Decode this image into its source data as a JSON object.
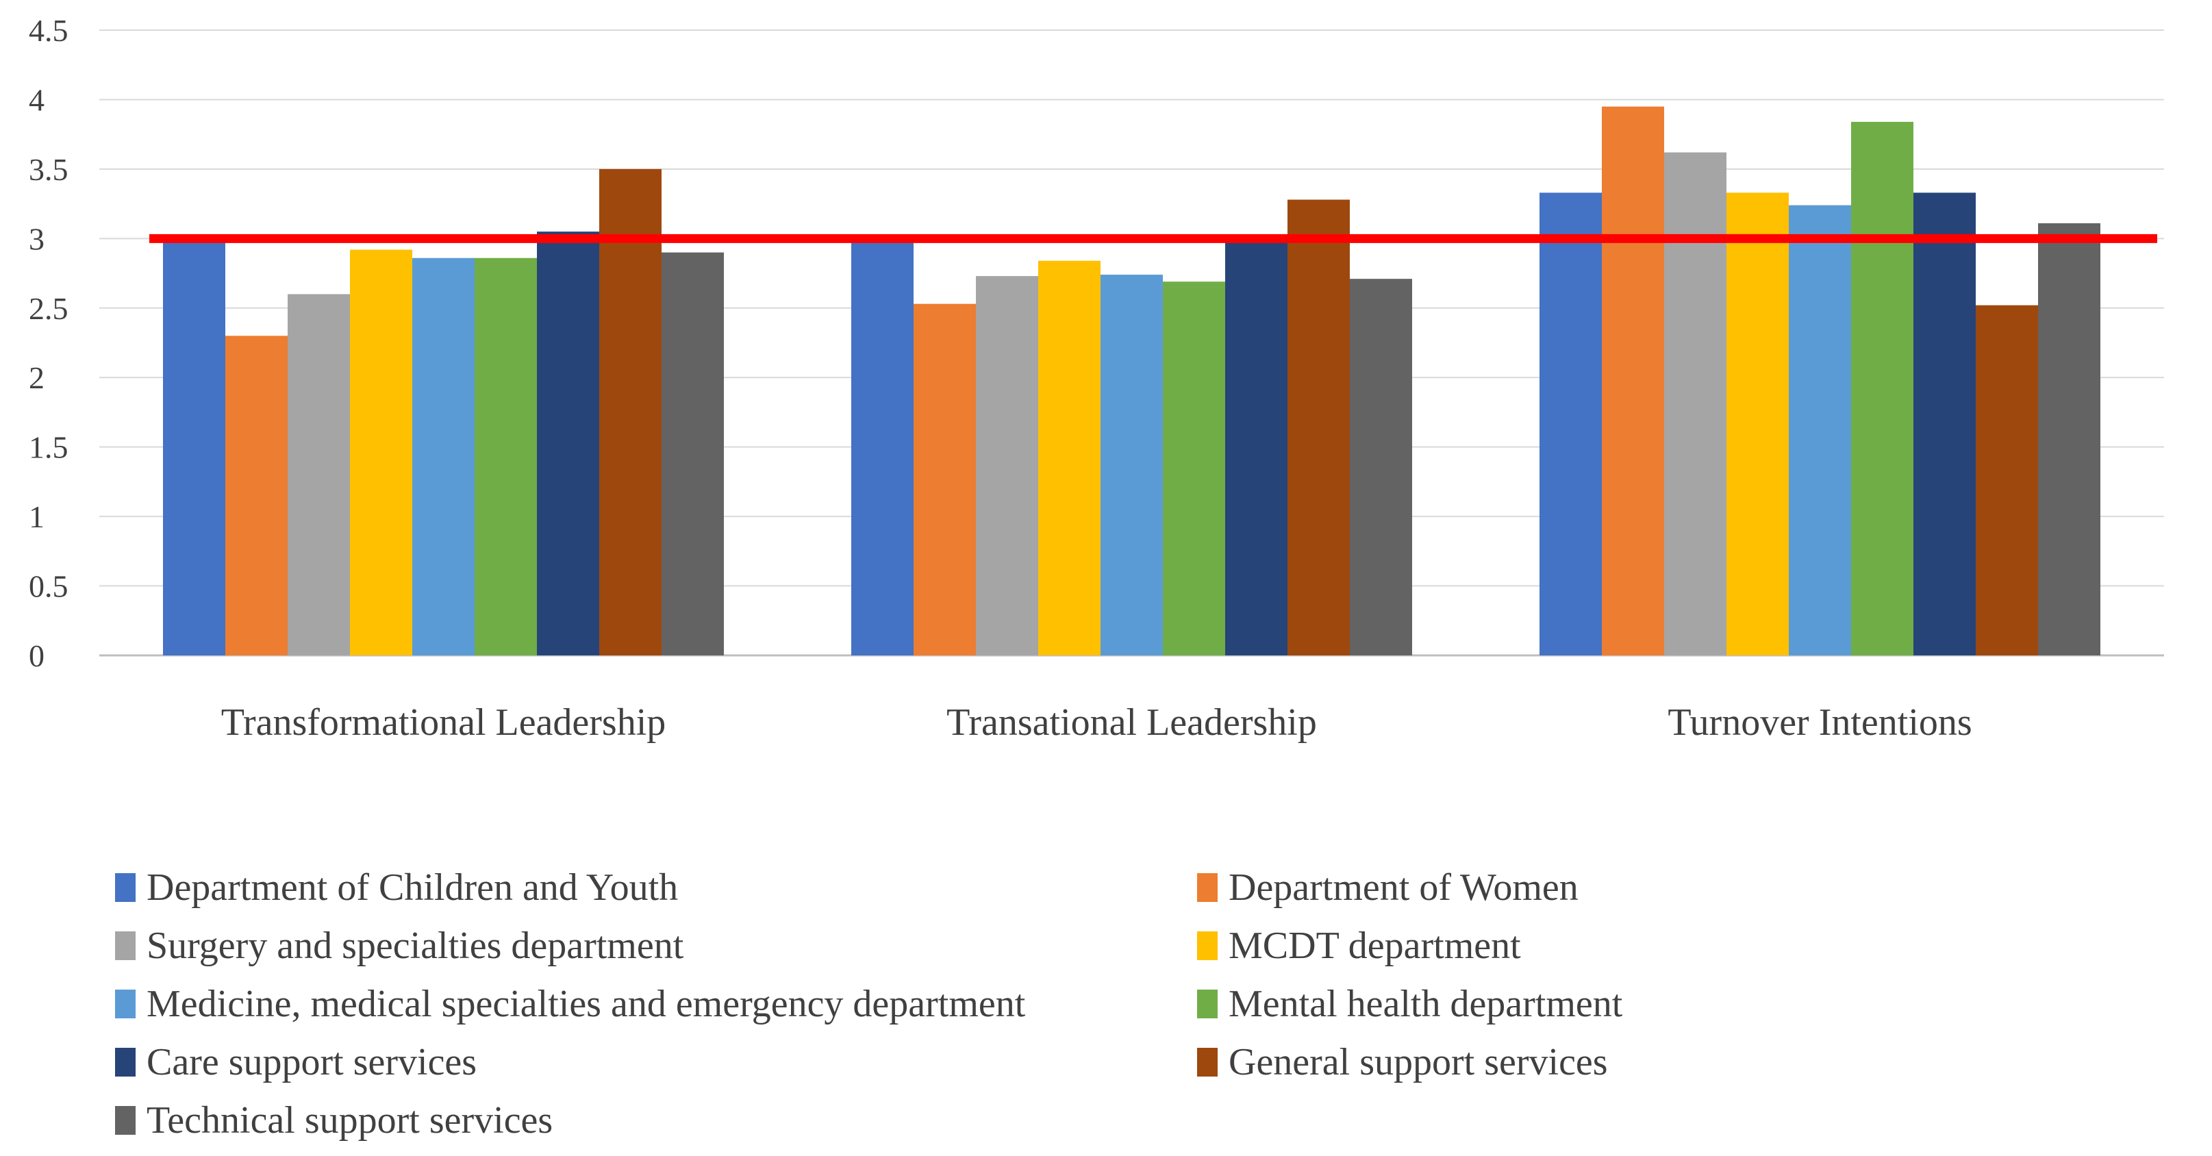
{
  "chart_data": {
    "type": "bar",
    "title": "",
    "xlabel": "",
    "ylabel": "",
    "ylim": [
      0,
      4.5
    ],
    "yticks": [
      "0",
      "0.5",
      "1",
      "1.5",
      "2",
      "2.5",
      "3",
      "3.5",
      "4",
      "4.5"
    ],
    "grid": true,
    "legend_position": "bottom",
    "categories": [
      "Transformational Leadership",
      "Transational Leadership",
      "Turnover Intentions"
    ],
    "series": [
      {
        "name": "Department of Children and Youth",
        "color": "#4472C4",
        "values": [
          3.0,
          3.0,
          3.33
        ]
      },
      {
        "name": "Department of Women",
        "color": "#ED7D31",
        "values": [
          2.3,
          2.53,
          3.95
        ]
      },
      {
        "name": "Surgery and specialties department",
        "color": "#A5A5A5",
        "values": [
          2.6,
          2.73,
          3.62
        ]
      },
      {
        "name": "MCDT department",
        "color": "#FFC000",
        "values": [
          2.92,
          2.84,
          3.33
        ]
      },
      {
        "name": "Medicine, medical specialties and emergency department",
        "color": "#5B9BD5",
        "values": [
          2.86,
          2.74,
          3.24
        ]
      },
      {
        "name": "Mental health department",
        "color": "#70AD47",
        "values": [
          2.86,
          2.69,
          3.84
        ]
      },
      {
        "name": "Care support services",
        "color": "#264478",
        "values": [
          3.05,
          3.0,
          3.33
        ]
      },
      {
        "name": "General support services",
        "color": "#9E480E",
        "values": [
          3.5,
          3.28,
          2.52
        ]
      },
      {
        "name": "Technical support services",
        "color": "#636363",
        "values": [
          2.9,
          2.71,
          3.11
        ]
      }
    ],
    "reference_line": {
      "value": 3.0,
      "color": "#FF0000"
    }
  }
}
